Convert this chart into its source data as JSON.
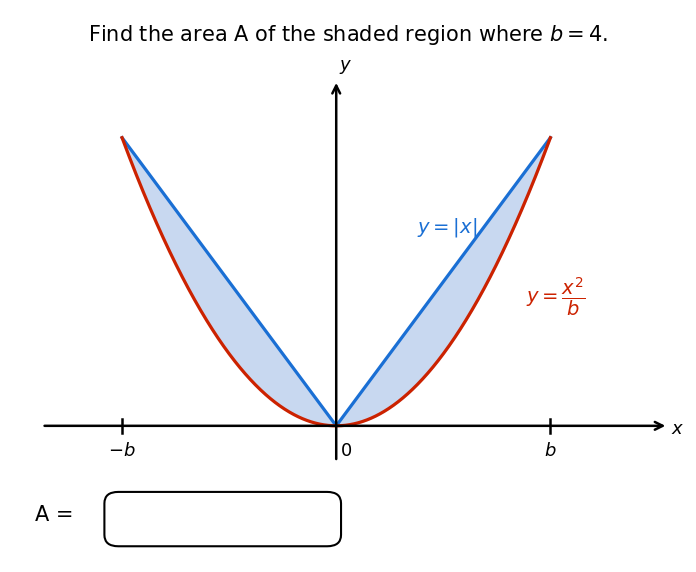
{
  "title": "Find the area A of the shaded region where $b = 4$.",
  "b": 4,
  "bg_color": "#ffffff",
  "shade_color": "#c8d8f0",
  "abs_line_color": "#1a6fd4",
  "parabola_color": "#cc2200",
  "abs_label": "$y = |x|$",
  "parabola_label_top": "$y = $",
  "xlabel": "$x$",
  "ylabel": "$y$",
  "xlim": [
    -5.5,
    6.2
  ],
  "ylim": [
    -0.6,
    4.8
  ],
  "abs_linewidth": 2.3,
  "parabola_linewidth": 2.3,
  "title_fontsize": 15,
  "label_fontsize": 13,
  "curve_label_fontsize": 14,
  "tick_label_fontsize": 13
}
